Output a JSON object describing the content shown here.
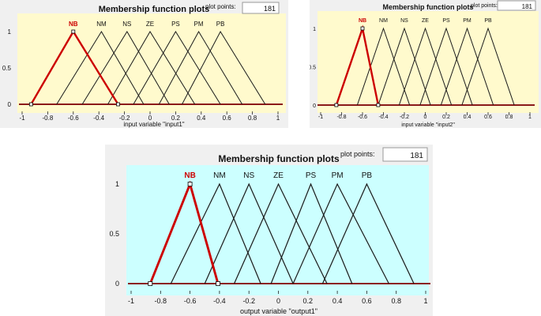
{
  "colors": {
    "panel_bg": "#f0f0f0",
    "selected_line": "#cc0000",
    "normal_line": "#1a1a1a",
    "axis_line": "#222222",
    "zero_line": "#8b1a1a"
  },
  "plots": [
    {
      "title": "Membership function plots",
      "plot_points_label": "plot points:",
      "plot_points_value": "181",
      "xlabel": "input variable \"input1\"",
      "bg": "#fffacd"
    },
    {
      "title": "Membership function plots",
      "plot_points_label": "plot points:",
      "plot_points_value": "181",
      "xlabel": "input variable \"input2\"",
      "bg": "#fffacd"
    },
    {
      "title": "Membership function plots",
      "plot_points_label": "plot points:",
      "plot_points_value": "181",
      "xlabel": "output variable \"output1\"",
      "bg": "#ccffff"
    }
  ],
  "chart_data": [
    {
      "type": "line",
      "title": "Membership function plots",
      "xlabel": "input variable \"input1\"",
      "ylabel": "",
      "xlim": [
        -1,
        1
      ],
      "ylim": [
        0,
        1
      ],
      "x_ticks": [
        "-1",
        "-0.8",
        "-0.6",
        "-0.4",
        "-0.2",
        "0",
        "0.2",
        "0.4",
        "0.6",
        "0.8",
        "1"
      ],
      "y_ticks": [
        "0",
        "0.5",
        "1"
      ],
      "selected": "NB",
      "series": [
        {
          "name": "NB",
          "x": [
            -0.93,
            -0.6,
            -0.25
          ],
          "y": [
            0,
            1,
            0
          ]
        },
        {
          "name": "NM",
          "x": [
            -0.73,
            -0.38,
            -0.05
          ],
          "y": [
            0,
            1,
            0
          ]
        },
        {
          "name": "NS",
          "x": [
            -0.53,
            -0.18,
            0.15
          ],
          "y": [
            0,
            1,
            0
          ]
        },
        {
          "name": "ZE",
          "x": [
            -0.33,
            0.0,
            0.35
          ],
          "y": [
            0,
            1,
            0
          ]
        },
        {
          "name": "PS",
          "x": [
            -0.13,
            0.2,
            0.55
          ],
          "y": [
            0,
            1,
            0
          ]
        },
        {
          "name": "PM",
          "x": [
            0.07,
            0.38,
            0.72
          ],
          "y": [
            0,
            1,
            0
          ]
        },
        {
          "name": "PB",
          "x": [
            0.25,
            0.55,
            0.9
          ],
          "y": [
            0,
            1,
            0
          ]
        }
      ]
    },
    {
      "type": "line",
      "title": "Membership function plots",
      "xlabel": "input variable \"input2\"",
      "ylabel": "",
      "xlim": [
        -1,
        1
      ],
      "ylim": [
        0,
        1
      ],
      "x_ticks": [
        "-1",
        "-0.8",
        "-0.6",
        "-0.4",
        "-0.2",
        "0",
        "0.2",
        "0.4",
        "0.6",
        "0.8",
        "1"
      ],
      "y_ticks": [
        "0",
        "0.5",
        "1"
      ],
      "selected": "NB",
      "series": [
        {
          "name": "NB",
          "x": [
            -0.85,
            -0.6,
            -0.45
          ],
          "y": [
            0,
            1,
            0
          ]
        },
        {
          "name": "NM",
          "x": [
            -0.65,
            -0.4,
            -0.15
          ],
          "y": [
            0,
            1,
            0
          ]
        },
        {
          "name": "NS",
          "x": [
            -0.45,
            -0.2,
            0.05
          ],
          "y": [
            0,
            1,
            0
          ]
        },
        {
          "name": "ZE",
          "x": [
            -0.25,
            0.0,
            0.25
          ],
          "y": [
            0,
            1,
            0
          ]
        },
        {
          "name": "PS",
          "x": [
            -0.05,
            0.2,
            0.45
          ],
          "y": [
            0,
            1,
            0
          ]
        },
        {
          "name": "PM",
          "x": [
            0.15,
            0.4,
            0.65
          ],
          "y": [
            0,
            1,
            0
          ]
        },
        {
          "name": "PB",
          "x": [
            0.35,
            0.6,
            0.85
          ],
          "y": [
            0,
            1,
            0
          ]
        }
      ]
    },
    {
      "type": "line",
      "title": "Membership function plots",
      "xlabel": "output variable \"output1\"",
      "ylabel": "",
      "xlim": [
        -1,
        1
      ],
      "ylim": [
        0,
        1
      ],
      "x_ticks": [
        "-1",
        "-0.8",
        "-0.6",
        "-0.4",
        "-0.2",
        "0",
        "0.2",
        "0.4",
        "0.6",
        "0.8",
        "1"
      ],
      "y_ticks": [
        "0",
        "0.5",
        "1"
      ],
      "selected": "NB",
      "series": [
        {
          "name": "NB",
          "x": [
            -0.87,
            -0.6,
            -0.41
          ],
          "y": [
            0,
            1,
            0
          ]
        },
        {
          "name": "NM",
          "x": [
            -0.73,
            -0.4,
            -0.12
          ],
          "y": [
            0,
            1,
            0
          ]
        },
        {
          "name": "NS",
          "x": [
            -0.5,
            -0.2,
            0.1
          ],
          "y": [
            0,
            1,
            0
          ]
        },
        {
          "name": "ZE",
          "x": [
            -0.3,
            0.0,
            0.33
          ],
          "y": [
            0,
            1,
            0
          ]
        },
        {
          "name": "PS",
          "x": [
            -0.05,
            0.22,
            0.5
          ],
          "y": [
            0,
            1,
            0
          ]
        },
        {
          "name": "PM",
          "x": [
            0.1,
            0.4,
            0.75
          ],
          "y": [
            0,
            1,
            0
          ]
        },
        {
          "name": "PB",
          "x": [
            0.3,
            0.6,
            0.92
          ],
          "y": [
            0,
            1,
            0
          ]
        }
      ]
    }
  ]
}
